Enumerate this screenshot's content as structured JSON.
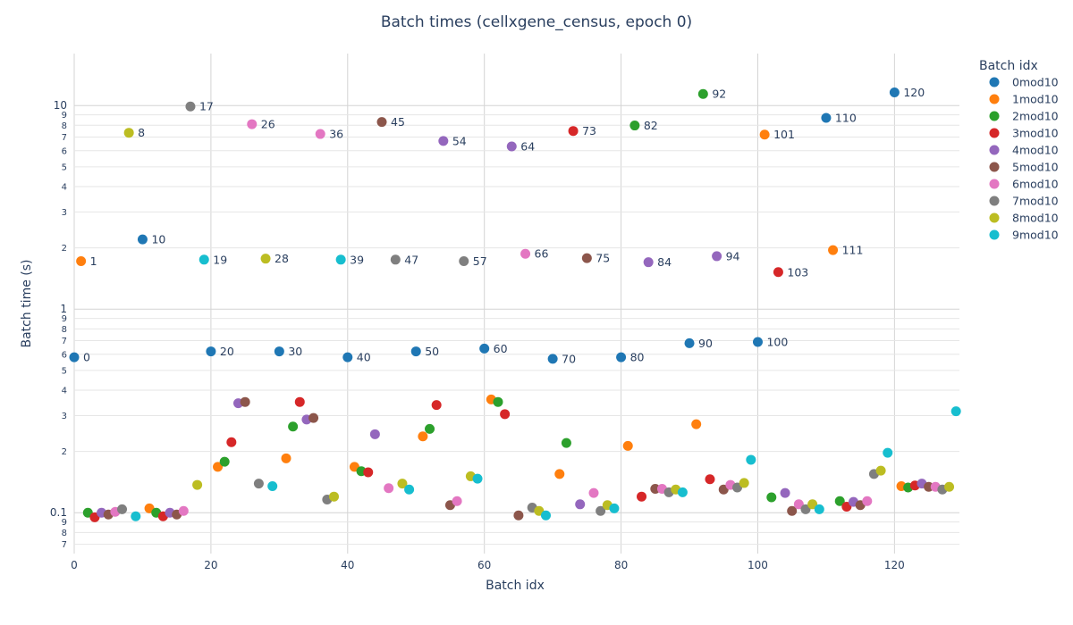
{
  "chart_data": {
    "type": "scatter",
    "title": "Batch times (cellxgene_census, epoch 0)",
    "xlabel": "Batch idx",
    "ylabel": "Batch time (s)",
    "y_scale": "log",
    "xlim": [
      0,
      129.5
    ],
    "ylim": [
      0.063,
      18
    ],
    "x_ticks": [
      0,
      20,
      40,
      60,
      80,
      100,
      120
    ],
    "y_major_ticks": [
      {
        "value": 0.1,
        "label": "0.1"
      },
      {
        "value": 1,
        "label": "1"
      },
      {
        "value": 10,
        "label": "10"
      }
    ],
    "y_minor_ticks": [
      {
        "value": 0.07,
        "label": "7"
      },
      {
        "value": 0.08,
        "label": "8"
      },
      {
        "value": 0.09,
        "label": "9"
      },
      {
        "value": 0.2,
        "label": "2"
      },
      {
        "value": 0.3,
        "label": "3"
      },
      {
        "value": 0.4,
        "label": "4"
      },
      {
        "value": 0.5,
        "label": "5"
      },
      {
        "value": 0.6,
        "label": "6"
      },
      {
        "value": 0.7,
        "label": "7"
      },
      {
        "value": 0.8,
        "label": "8"
      },
      {
        "value": 0.9,
        "label": "9"
      },
      {
        "value": 2,
        "label": "2"
      },
      {
        "value": 3,
        "label": "3"
      },
      {
        "value": 4,
        "label": "4"
      },
      {
        "value": 5,
        "label": "5"
      },
      {
        "value": 6,
        "label": "6"
      },
      {
        "value": 7,
        "label": "7"
      },
      {
        "value": 8,
        "label": "8"
      },
      {
        "value": 9,
        "label": "9"
      }
    ],
    "grid": true,
    "legend_title": "Batch idx",
    "legend_position": "right",
    "series": [
      {
        "name": "0mod10",
        "color": "#1f77b4",
        "points": [
          [
            0,
            0.58
          ],
          [
            10,
            2.2
          ],
          [
            20,
            0.62
          ],
          [
            30,
            0.62
          ],
          [
            40,
            0.58
          ],
          [
            50,
            0.62
          ],
          [
            60,
            0.64
          ],
          [
            70,
            0.57
          ],
          [
            80,
            0.58
          ],
          [
            90,
            0.68
          ],
          [
            100,
            0.69
          ],
          [
            110,
            8.7
          ],
          [
            120,
            11.6
          ]
        ]
      },
      {
        "name": "1mod10",
        "color": "#ff7f0e",
        "points": [
          [
            1,
            1.72
          ],
          [
            11,
            0.105
          ],
          [
            21,
            0.168
          ],
          [
            31,
            0.185
          ],
          [
            41,
            0.168
          ],
          [
            51,
            0.237
          ],
          [
            61,
            0.36
          ],
          [
            71,
            0.155
          ],
          [
            81,
            0.213
          ],
          [
            91,
            0.272
          ],
          [
            101,
            7.2
          ],
          [
            111,
            1.95
          ],
          [
            121,
            0.135
          ]
        ]
      },
      {
        "name": "2mod10",
        "color": "#2ca02c",
        "points": [
          [
            2,
            0.1
          ],
          [
            12,
            0.1
          ],
          [
            22,
            0.178
          ],
          [
            32,
            0.265
          ],
          [
            42,
            0.16
          ],
          [
            52,
            0.258
          ],
          [
            62,
            0.35
          ],
          [
            72,
            0.22
          ],
          [
            82,
            7.98
          ],
          [
            92,
            11.4
          ],
          [
            102,
            0.119
          ],
          [
            112,
            0.114
          ],
          [
            122,
            0.133
          ]
        ]
      },
      {
        "name": "3mod10",
        "color": "#d62728",
        "points": [
          [
            3,
            0.095
          ],
          [
            13,
            0.096
          ],
          [
            23,
            0.222
          ],
          [
            33,
            0.35
          ],
          [
            43,
            0.158
          ],
          [
            53,
            0.338
          ],
          [
            63,
            0.305
          ],
          [
            73,
            7.5
          ],
          [
            83,
            0.12
          ],
          [
            93,
            0.146
          ],
          [
            103,
            1.52
          ],
          [
            113,
            0.107
          ],
          [
            123,
            0.136
          ]
        ]
      },
      {
        "name": "4mod10",
        "color": "#9467bd",
        "points": [
          [
            4,
            0.1
          ],
          [
            14,
            0.1
          ],
          [
            24,
            0.345
          ],
          [
            34,
            0.287
          ],
          [
            44,
            0.243
          ],
          [
            54,
            6.7
          ],
          [
            64,
            6.3
          ],
          [
            74,
            0.11
          ],
          [
            84,
            1.7
          ],
          [
            94,
            1.82
          ],
          [
            104,
            0.125
          ],
          [
            114,
            0.113
          ],
          [
            124,
            0.139
          ]
        ]
      },
      {
        "name": "5mod10",
        "color": "#8c564b",
        "points": [
          [
            5,
            0.098
          ],
          [
            15,
            0.098
          ],
          [
            25,
            0.35
          ],
          [
            35,
            0.292
          ],
          [
            45,
            8.3
          ],
          [
            55,
            0.109
          ],
          [
            65,
            0.097
          ],
          [
            75,
            1.78
          ],
          [
            85,
            0.131
          ],
          [
            95,
            0.13
          ],
          [
            105,
            0.102
          ],
          [
            115,
            0.109
          ],
          [
            125,
            0.134
          ]
        ]
      },
      {
        "name": "6mod10",
        "color": "#e377c2",
        "points": [
          [
            6,
            0.101
          ],
          [
            16,
            0.102
          ],
          [
            26,
            8.1
          ],
          [
            36,
            7.25
          ],
          [
            46,
            0.132
          ],
          [
            56,
            0.114
          ],
          [
            66,
            1.87
          ],
          [
            76,
            0.125
          ],
          [
            86,
            0.131
          ],
          [
            96,
            0.137
          ],
          [
            106,
            0.11
          ],
          [
            116,
            0.114
          ],
          [
            126,
            0.134
          ]
        ]
      },
      {
        "name": "7mod10",
        "color": "#7f7f7f",
        "points": [
          [
            7,
            0.104
          ],
          [
            17,
            9.9
          ],
          [
            27,
            0.139
          ],
          [
            37,
            0.116
          ],
          [
            47,
            1.75
          ],
          [
            57,
            1.72
          ],
          [
            67,
            0.106
          ],
          [
            77,
            0.102
          ],
          [
            87,
            0.126
          ],
          [
            97,
            0.133
          ],
          [
            107,
            0.104
          ],
          [
            117,
            0.155
          ],
          [
            127,
            0.13
          ]
        ]
      },
      {
        "name": "8mod10",
        "color": "#bcbd22",
        "points": [
          [
            8,
            7.35
          ],
          [
            18,
            0.137
          ],
          [
            28,
            1.77
          ],
          [
            38,
            0.12
          ],
          [
            48,
            0.139
          ],
          [
            58,
            0.151
          ],
          [
            68,
            0.102
          ],
          [
            78,
            0.109
          ],
          [
            88,
            0.13
          ],
          [
            98,
            0.14
          ],
          [
            108,
            0.11
          ],
          [
            118,
            0.161
          ],
          [
            128,
            0.134
          ]
        ]
      },
      {
        "name": "9mod10",
        "color": "#17becf",
        "points": [
          [
            9,
            0.096
          ],
          [
            19,
            1.75
          ],
          [
            29,
            0.135
          ],
          [
            39,
            1.75
          ],
          [
            49,
            0.13
          ],
          [
            59,
            0.147
          ],
          [
            69,
            0.097
          ],
          [
            79,
            0.105
          ],
          [
            89,
            0.126
          ],
          [
            99,
            0.182
          ],
          [
            109,
            0.104
          ],
          [
            119,
            0.197
          ],
          [
            129,
            0.315
          ]
        ]
      }
    ]
  }
}
